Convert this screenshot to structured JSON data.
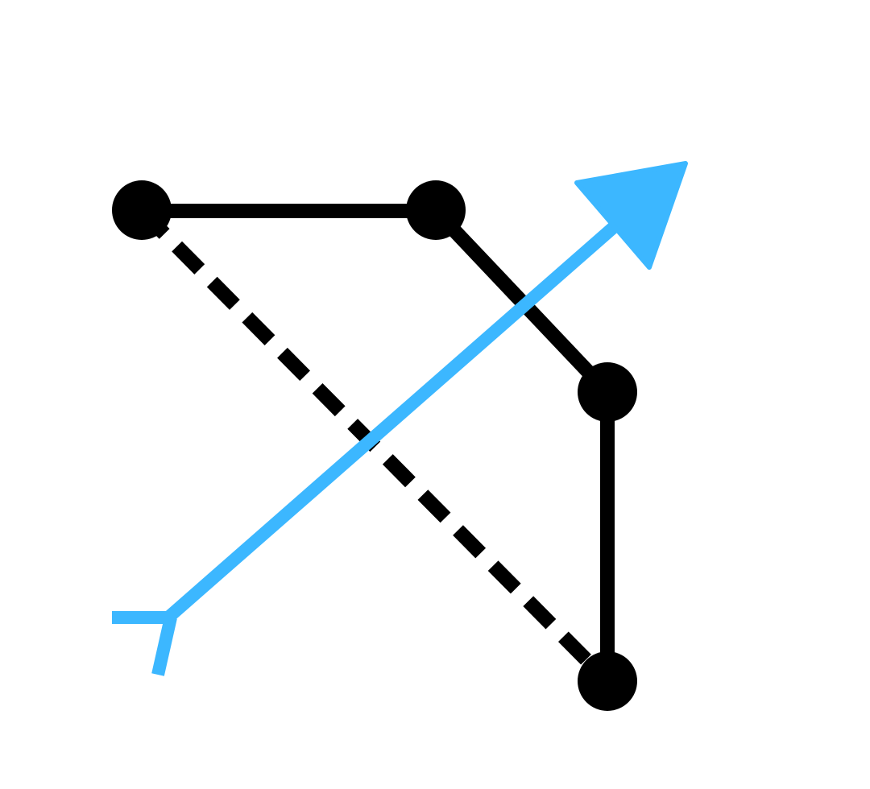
{
  "colors": {
    "background": "#ffffff",
    "path": "#000000",
    "arrow": "#3cb7ff"
  },
  "diagram": {
    "node_count": 4,
    "solid_edges": 3,
    "dashed_edges": 1,
    "icon": "bow-and-arrow-icon"
  }
}
